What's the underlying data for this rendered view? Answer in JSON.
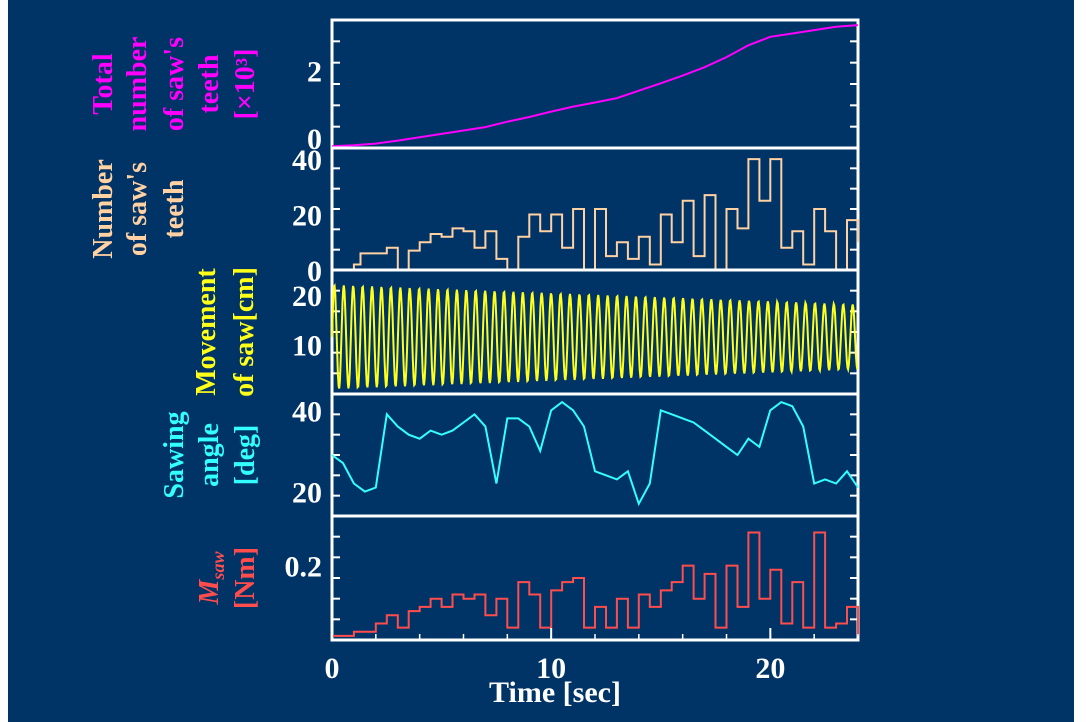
{
  "colors": {
    "background": "#003366",
    "axis": "#ffffff",
    "total_teeth": "#ff00ff",
    "teeth": "#ffd1a3",
    "movement": "#ffff1a",
    "angle": "#33ffff",
    "moment": "#ff4d4d"
  },
  "xaxis": {
    "label": "Time [sec]",
    "range": [
      0,
      24
    ],
    "ticks": [
      0,
      10,
      20
    ],
    "tick_labels": [
      "0",
      "10",
      "20"
    ]
  },
  "chart_data": [
    {
      "type": "line",
      "ylabel_lines": [
        "Total number of saw's teeth [×10³]"
      ],
      "ylabel_col1": "Total",
      "ylabel_col2": "number",
      "ylabel_col3": "of saw's",
      "ylabel_col4": "teeth",
      "ylabel_col5": "[×10³]",
      "yrange": [
        -0.3,
        3.5
      ],
      "yticks": [
        0,
        2
      ],
      "ytick_labels": [
        "0",
        "2"
      ],
      "x": [
        0,
        1,
        2,
        3,
        4,
        5,
        6,
        7,
        8,
        9,
        10,
        11,
        12,
        13,
        14,
        15,
        16,
        17,
        18,
        19,
        20,
        21,
        22,
        23,
        24
      ],
      "y": [
        -0.25,
        -0.22,
        -0.17,
        -0.08,
        0.02,
        0.12,
        0.22,
        0.32,
        0.48,
        0.62,
        0.78,
        0.93,
        1.05,
        1.18,
        1.4,
        1.62,
        1.85,
        2.1,
        2.4,
        2.75,
        3.0,
        3.1,
        3.2,
        3.3,
        3.35
      ]
    },
    {
      "type": "line",
      "ylabel_col1": "Number",
      "ylabel_col2": "of saw's",
      "ylabel_col3": "teeth",
      "yrange": [
        0,
        44
      ],
      "yticks": [
        0,
        20,
        40
      ],
      "ytick_labels": [
        "0",
        "20",
        "40"
      ],
      "x": [
        0,
        1,
        1.3,
        2,
        2.5,
        3,
        3.5,
        4,
        4.5,
        5,
        5.5,
        6,
        6.5,
        7,
        7.5,
        8,
        8.5,
        9,
        9.5,
        10,
        10.5,
        11,
        11.5,
        12,
        12.5,
        13,
        13.5,
        14,
        14.5,
        15,
        15.5,
        16,
        16.5,
        17,
        17.5,
        18,
        18.5,
        19,
        19.5,
        20,
        20.5,
        21,
        21.5,
        22,
        22.5,
        23,
        23.5,
        24
      ],
      "y": [
        0,
        2,
        6,
        6,
        8,
        0,
        7,
        10,
        13,
        12,
        15,
        14,
        8,
        14,
        4,
        0,
        12,
        20,
        14,
        20,
        8,
        22,
        0,
        22,
        5,
        10,
        4,
        12,
        2,
        20,
        10,
        25,
        5,
        27,
        0,
        22,
        15,
        40,
        25,
        40,
        8,
        14,
        2,
        22,
        14,
        0,
        18,
        10
      ]
    },
    {
      "type": "line",
      "ylabel_col1": "Movement",
      "ylabel_col2": "of saw[cm]",
      "yrange": [
        0,
        25
      ],
      "yticks": [
        10,
        20
      ],
      "ytick_labels": [
        "10",
        "20"
      ],
      "oscillation": {
        "period_sec": 0.43,
        "center_start": 11.5,
        "center_end": 11.5,
        "amplitude_start": 10.5,
        "amplitude_end": 6.5
      }
    },
    {
      "type": "line",
      "ylabel_col1": "Sawing",
      "ylabel_col2": "angle",
      "ylabel_col3": "[deg]",
      "yrange": [
        14,
        44
      ],
      "yticks": [
        20,
        40
      ],
      "ytick_labels": [
        "20",
        "40"
      ],
      "x": [
        0,
        0.5,
        1,
        1.5,
        2,
        2.5,
        3,
        3.5,
        4,
        4.5,
        5,
        5.5,
        6,
        6.5,
        7,
        7.5,
        8,
        8.5,
        9,
        9.5,
        10,
        10.5,
        11,
        11.5,
        12,
        12.5,
        13,
        13.5,
        14,
        14.5,
        15,
        15.5,
        16,
        16.5,
        17,
        17.5,
        18,
        18.5,
        19,
        19.5,
        20,
        20.5,
        21,
        21.5,
        22,
        22.5,
        23,
        23.5,
        24
      ],
      "y": [
        29,
        27,
        22,
        20,
        21,
        39,
        36,
        34,
        33,
        35,
        34,
        35,
        37,
        39,
        36,
        22,
        38,
        38,
        36,
        30,
        40,
        42,
        40,
        36,
        25,
        24,
        23,
        25,
        17,
        22,
        40,
        39,
        38,
        37,
        35,
        33,
        31,
        29,
        33,
        31,
        40,
        42,
        41,
        36,
        22,
        23,
        22,
        25,
        21
      ]
    },
    {
      "type": "line",
      "ylabel_col1": "M",
      "ylabel_col1_sub": "saw",
      "ylabel_col2": "[Nm]",
      "yrange": [
        0.02,
        0.32
      ],
      "yticks": [
        0.2
      ],
      "ytick_labels": [
        "0.2"
      ],
      "x": [
        0,
        1,
        2,
        2.5,
        3,
        3.5,
        4,
        4.5,
        5,
        5.5,
        6,
        6.5,
        7,
        7.5,
        8,
        8.5,
        9,
        9.5,
        10,
        10.5,
        11,
        11.5,
        12,
        12.5,
        13,
        13.5,
        14,
        14.5,
        15,
        15.5,
        16,
        16.5,
        17,
        17.5,
        18,
        18.5,
        19,
        19.5,
        20,
        20.5,
        21,
        21.5,
        22,
        22.5,
        23,
        23.5,
        24
      ],
      "y": [
        0.03,
        0.04,
        0.06,
        0.08,
        0.05,
        0.09,
        0.1,
        0.12,
        0.1,
        0.13,
        0.12,
        0.13,
        0.08,
        0.12,
        0.05,
        0.16,
        0.13,
        0.05,
        0.14,
        0.16,
        0.17,
        0.05,
        0.1,
        0.05,
        0.12,
        0.05,
        0.13,
        0.1,
        0.14,
        0.16,
        0.2,
        0.12,
        0.18,
        0.05,
        0.2,
        0.1,
        0.28,
        0.12,
        0.19,
        0.06,
        0.16,
        0.05,
        0.28,
        0.05,
        0.06,
        0.1,
        0.03
      ]
    }
  ]
}
